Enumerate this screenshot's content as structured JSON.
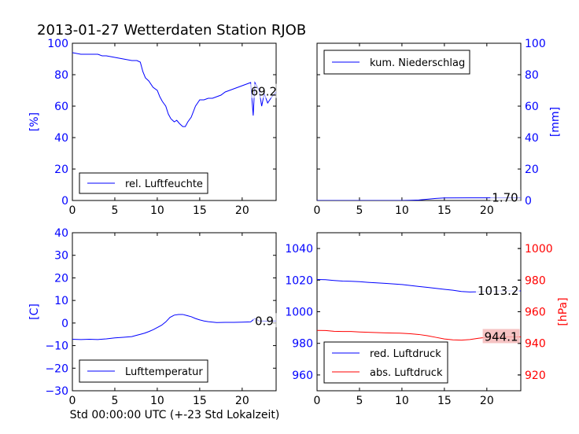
{
  "title": "2013-01-27 Wetterdaten Station RJOB",
  "xlabel": "Std 00:00:00 UTC (+-23 Std Lokalzeit)",
  "colors": {
    "left_axis": "#0000ff",
    "right_axis": "#ff0000",
    "series_blue": "#0000ff",
    "series_red": "#ff0000"
  },
  "chart_data": [
    {
      "type": "line",
      "panel": "top-left",
      "xlim": [
        0,
        24
      ],
      "ylim": [
        0,
        100
      ],
      "xticks": [
        0,
        5,
        10,
        15,
        20
      ],
      "yticks": [
        0,
        20,
        40,
        60,
        80,
        100
      ],
      "ylabel": "[%]",
      "ylabel_color": "#0000ff",
      "legend_placement": "lower-left",
      "series": [
        {
          "name": "rel. Luftfeuchte",
          "color": "#0000ff",
          "x": [
            0,
            1,
            2,
            3,
            3.5,
            4,
            5,
            6,
            7,
            7.6,
            8,
            8.3,
            8.6,
            9,
            9.5,
            10,
            10.3,
            10.6,
            11,
            11.3,
            11.6,
            12,
            12.3,
            12.6,
            13,
            13.3,
            13.6,
            14,
            14.5,
            15,
            15.5,
            16,
            16.5,
            17,
            17.5,
            18,
            18.5,
            19,
            19.5,
            20,
            20.5,
            21,
            21.3,
            21.5,
            21.8,
            22,
            22.3,
            22.6,
            23,
            23.5,
            24
          ],
          "y": [
            94,
            93,
            93,
            93,
            92,
            92,
            91,
            90,
            89,
            89,
            88,
            82,
            78,
            76,
            72,
            70,
            66,
            63,
            60,
            55,
            52,
            50,
            51,
            49,
            47,
            47,
            50,
            53,
            60,
            64,
            64,
            65,
            65,
            66,
            67,
            69,
            70,
            71,
            72,
            73,
            74,
            75,
            54,
            75,
            72,
            70,
            60,
            68,
            62,
            66,
            69
          ]
        }
      ],
      "annotations": [
        {
          "text": "69.2",
          "x": 21.0,
          "y": 69.2
        }
      ]
    },
    {
      "type": "line",
      "panel": "top-right",
      "xlim": [
        0,
        24
      ],
      "ylim": [
        0,
        100
      ],
      "xticks": [
        0,
        5,
        10,
        15,
        20
      ],
      "yticks": [
        0,
        20,
        40,
        60,
        80,
        100
      ],
      "ylabel": "[mm]",
      "ylabel_color": "#0000ff",
      "legend_placement": "upper-left",
      "series": [
        {
          "name": "kum. Niederschlag",
          "color": "#0000ff",
          "x": [
            0,
            10,
            11,
            12,
            13,
            14,
            15,
            18,
            21,
            24
          ],
          "y": [
            0,
            0,
            0.1,
            0.3,
            0.8,
            1.3,
            1.6,
            1.7,
            1.7,
            1.7
          ]
        }
      ],
      "annotations": [
        {
          "text": "1.70",
          "x": 20.6,
          "y": 1.7
        }
      ]
    },
    {
      "type": "line",
      "panel": "bottom-left",
      "xlim": [
        0,
        24
      ],
      "ylim": [
        -30,
        40
      ],
      "xticks": [
        0,
        5,
        10,
        15,
        20
      ],
      "yticks": [
        -30,
        -20,
        -10,
        0,
        10,
        20,
        30,
        40
      ],
      "ylabel": "[C]",
      "ylabel_color": "#0000ff",
      "legend_placement": "lower-left",
      "series": [
        {
          "name": "Lufttemperatur",
          "color": "#0000ff",
          "x": [
            0,
            1,
            2,
            3,
            4,
            5,
            6,
            7,
            7.5,
            8,
            8.5,
            9,
            9.5,
            10,
            10.5,
            11,
            11.5,
            12,
            12.5,
            13,
            13.5,
            14,
            14.5,
            15,
            15.5,
            16,
            17,
            18,
            19,
            20,
            21,
            21.5,
            22,
            23,
            24
          ],
          "y": [
            -7.2,
            -7.3,
            -7.2,
            -7.3,
            -7.0,
            -6.6,
            -6.3,
            -6.0,
            -5.5,
            -5.0,
            -4.5,
            -3.8,
            -3.0,
            -2.0,
            -1.0,
            0.5,
            2.5,
            3.5,
            3.8,
            3.8,
            3.3,
            2.8,
            2.0,
            1.4,
            0.9,
            0.6,
            0.2,
            0.3,
            0.3,
            0.4,
            0.5,
            2.0,
            0.9,
            0.8,
            0.9
          ]
        }
      ],
      "annotations": [
        {
          "text": "0.9",
          "x": 21.5,
          "y": 0.9
        }
      ]
    },
    {
      "type": "line",
      "panel": "bottom-right",
      "xlim": [
        0,
        24
      ],
      "ylim": [
        950,
        1050
      ],
      "yticks": [
        960,
        980,
        1000,
        1020,
        1040
      ],
      "ylabel_color": "#0000ff",
      "xticks": [
        0,
        5,
        10,
        15,
        20
      ],
      "y2lim": [
        910,
        1010
      ],
      "y2ticks": [
        920,
        940,
        960,
        980,
        1000
      ],
      "y2label": "[hPa]",
      "y2label_color": "#ff0000",
      "legend_placement": "lower-left",
      "series": [
        {
          "name": "red. Luftdruck",
          "color": "#0000ff",
          "axis": "left",
          "x": [
            0,
            1,
            2,
            3,
            4,
            5,
            6,
            7,
            8,
            9,
            10,
            11,
            12,
            13,
            14,
            15,
            16,
            17,
            18,
            19,
            20,
            21,
            22,
            23,
            24
          ],
          "y": [
            1020.4,
            1020.3,
            1019.8,
            1019.4,
            1019.3,
            1019.0,
            1018.6,
            1018.3,
            1018.0,
            1017.6,
            1017.2,
            1016.6,
            1016.0,
            1015.4,
            1014.8,
            1014.2,
            1013.6,
            1012.8,
            1012.5,
            1012.6,
            1013.0,
            1013.2,
            1013.2,
            1013.2,
            1013.2
          ]
        },
        {
          "name": "abs. Luftdruck",
          "color": "#ff0000",
          "axis": "right",
          "x": [
            0,
            1,
            2,
            3,
            4,
            5,
            6,
            7,
            8,
            9,
            10,
            11,
            12,
            13,
            14,
            15,
            16,
            17,
            18,
            19,
            20,
            21,
            22,
            23,
            24
          ],
          "y": [
            948.2,
            948.1,
            947.6,
            947.5,
            947.5,
            947.2,
            947.0,
            946.8,
            946.6,
            946.5,
            946.4,
            946.1,
            945.6,
            944.8,
            943.8,
            942.8,
            942.2,
            942.0,
            942.4,
            943.2,
            943.8,
            944.0,
            944.1,
            944.1,
            944.1
          ]
        }
      ],
      "annotations": [
        {
          "text": "1013.2",
          "x": 18.9,
          "y": 1013.2,
          "axis": "left",
          "box_color": "#ffffff"
        },
        {
          "text": "944.1",
          "x": 19.7,
          "y": 944.1,
          "axis": "right",
          "box_color": "#f4b8b8"
        }
      ]
    }
  ]
}
